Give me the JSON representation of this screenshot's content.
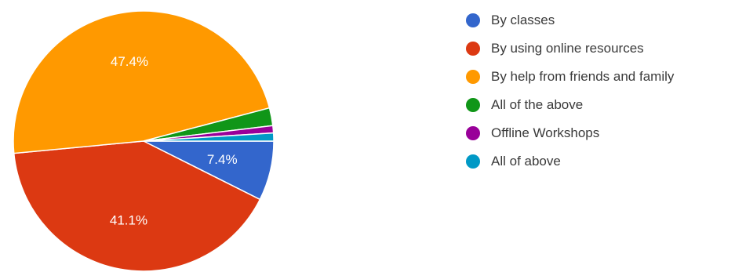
{
  "chart_data": {
    "type": "pie",
    "series": [
      {
        "name": "By classes",
        "value": 7.4,
        "color": "#3366cc",
        "label": "7.4%"
      },
      {
        "name": "By using online resources",
        "value": 41.1,
        "color": "#dc3912",
        "label": "41.1%"
      },
      {
        "name": "By help from friends and family",
        "value": 47.4,
        "color": "#ff9900",
        "label": "47.4%"
      },
      {
        "name": "All of the above",
        "value": 2.2,
        "color": "#109618",
        "label": ""
      },
      {
        "name": "Offline Workshops",
        "value": 0.9,
        "color": "#990099",
        "label": ""
      },
      {
        "name": "All of above",
        "value": 1.0,
        "color": "#0099c6",
        "label": ""
      }
    ],
    "legend_position": "right",
    "start": "clockwise from 3 o'clock"
  }
}
